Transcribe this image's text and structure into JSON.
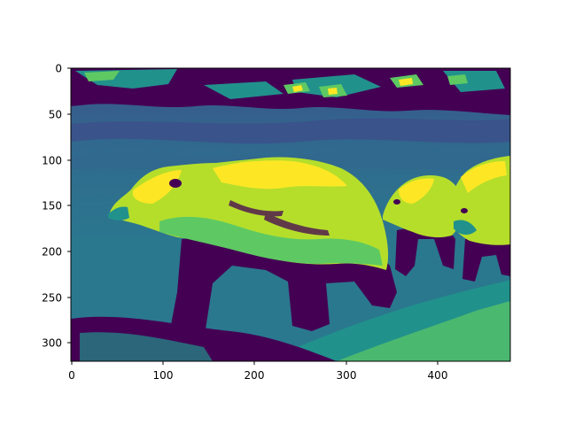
{
  "figure": {
    "kind": "image-plot",
    "colormap": "viridis",
    "palette": {
      "c0": "#440154",
      "c1": "#3b528b",
      "c2": "#21918c",
      "c3": "#5ec962",
      "c4": "#b5de2b",
      "c5": "#fde725"
    },
    "subject_icon": "bear-icon",
    "x_axis": {
      "range": [
        0,
        480
      ],
      "ticks": [
        "0",
        "100",
        "200",
        "300",
        "400"
      ]
    },
    "y_axis": {
      "range": [
        0,
        320
      ],
      "inverted": true,
      "ticks": [
        "0",
        "50",
        "100",
        "150",
        "200",
        "250",
        "300"
      ]
    }
  }
}
